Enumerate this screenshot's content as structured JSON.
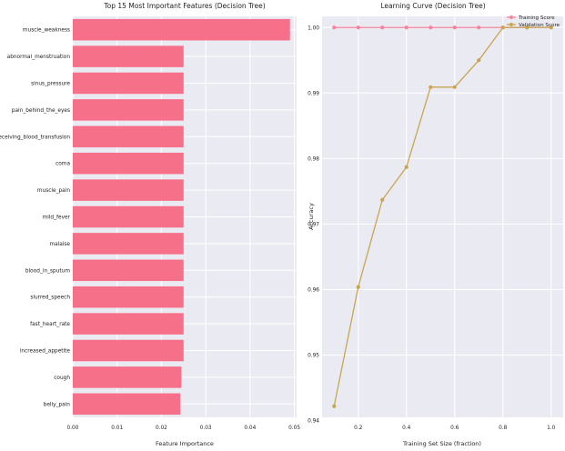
{
  "chart_data": [
    {
      "type": "bar",
      "orientation": "horizontal",
      "title": "Top 15 Most Important Features (Decision Tree)",
      "xlabel": "Feature Importance",
      "ylabel": "",
      "xlim": [
        0,
        0.0505
      ],
      "xticks": [
        "0.00",
        "0.01",
        "0.02",
        "0.03",
        "0.04",
        "0.05"
      ],
      "grid": true,
      "bar_color": "#f7708a",
      "categories": [
        "muscle_weakness",
        "abnormal_menstruation",
        "sinus_pressure",
        "pain_behind_the_eyes",
        "receiving_blood_transfusion",
        "coma",
        "muscle_pain",
        "mild_fever",
        "malaise",
        "blood_in_sputum",
        "slurred_speech",
        "fast_heart_rate",
        "increased_appetite",
        "cough",
        "belly_pain"
      ],
      "values": [
        0.049,
        0.025,
        0.025,
        0.025,
        0.025,
        0.025,
        0.025,
        0.025,
        0.025,
        0.025,
        0.025,
        0.025,
        0.025,
        0.0245,
        0.0243
      ]
    },
    {
      "type": "line",
      "title": "Learning Curve (Decision Tree)",
      "xlabel": "Training Set Size (fraction)",
      "ylabel": "Accuracy",
      "xlim": [
        0.05,
        1.05
      ],
      "ylim": [
        0.9405,
        1.0017
      ],
      "xticks": [
        "0.2",
        "0.4",
        "0.6",
        "0.8",
        "1.0"
      ],
      "yticks": [
        "0.94",
        "0.95",
        "0.96",
        "0.97",
        "0.98",
        "0.99",
        "1.00"
      ],
      "grid": true,
      "legend_position": "top-right",
      "x": [
        0.1,
        0.2,
        0.3,
        0.4,
        0.5,
        0.6,
        0.7,
        0.8,
        0.9,
        1.0
      ],
      "series": [
        {
          "name": "Training Score",
          "color": "#f7849c",
          "values": [
            1.0,
            1.0,
            1.0,
            1.0,
            1.0,
            1.0,
            1.0,
            1.0,
            1.0,
            1.0
          ]
        },
        {
          "name": "Validation Score",
          "color": "#c9a552",
          "values": [
            0.9422,
            0.9604,
            0.9737,
            0.9787,
            0.9909,
            0.9909,
            0.995,
            1.0,
            1.0,
            1.0
          ]
        }
      ]
    }
  ]
}
